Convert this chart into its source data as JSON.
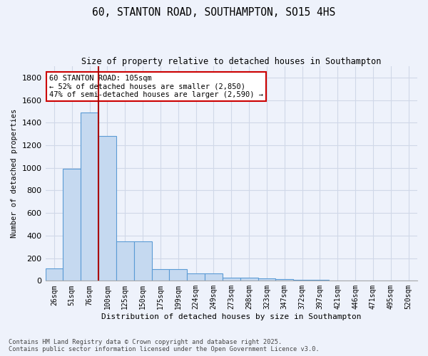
{
  "title1": "60, STANTON ROAD, SOUTHAMPTON, SO15 4HS",
  "title2": "Size of property relative to detached houses in Southampton",
  "xlabel": "Distribution of detached houses by size in Southampton",
  "ylabel": "Number of detached properties",
  "categories": [
    "26sqm",
    "51sqm",
    "76sqm",
    "100sqm",
    "125sqm",
    "150sqm",
    "175sqm",
    "199sqm",
    "224sqm",
    "249sqm",
    "273sqm",
    "298sqm",
    "323sqm",
    "347sqm",
    "372sqm",
    "397sqm",
    "421sqm",
    "446sqm",
    "471sqm",
    "495sqm",
    "520sqm"
  ],
  "values": [
    110,
    990,
    1490,
    1285,
    350,
    350,
    100,
    100,
    65,
    65,
    30,
    25,
    20,
    15,
    8,
    8,
    4,
    0,
    0,
    0,
    0
  ],
  "bar_color": "#c5d9f0",
  "bar_edge_color": "#5b9bd5",
  "background_color": "#eef2fb",
  "grid_color": "#d0d8e8",
  "annotation_text": "60 STANTON ROAD: 105sqm\n← 52% of detached houses are smaller (2,850)\n47% of semi-detached houses are larger (2,590) →",
  "vline_x_index": 3,
  "vline_color": "#aa0000",
  "annotation_box_color": "#ffffff",
  "annotation_box_edge": "#cc0000",
  "footnote": "Contains HM Land Registry data © Crown copyright and database right 2025.\nContains public sector information licensed under the Open Government Licence v3.0.",
  "ylim": [
    0,
    1900
  ],
  "yticks": [
    0,
    200,
    400,
    600,
    800,
    1000,
    1200,
    1400,
    1600,
    1800
  ]
}
